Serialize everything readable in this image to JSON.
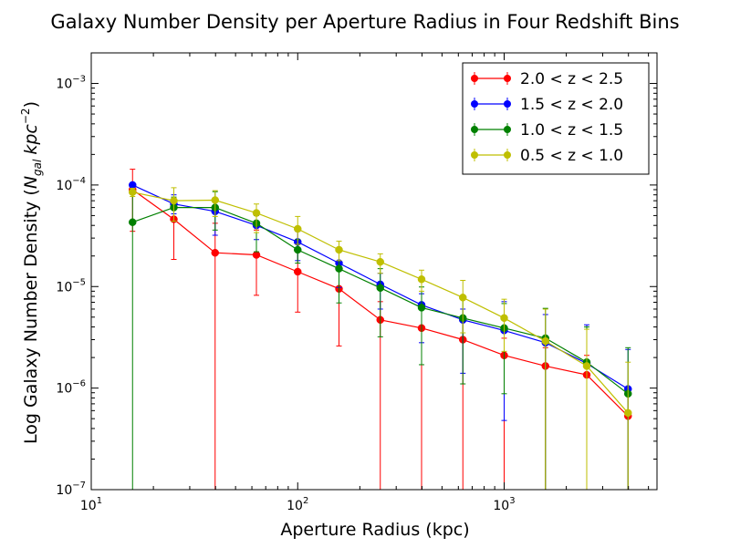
{
  "chart_data": {
    "type": "line",
    "title": "Galaxy Number Density per Aperture Radius in Four Redshift Bins",
    "xlabel": "Aperture Radius (kpc)",
    "ylabel_text": "Log Galaxy Number Density (",
    "ylabel_math": "N",
    "ylabel_sub": "gal",
    "ylabel_unit": "kpc",
    "ylabel_sup": "−2",
    "ylabel_close": ")",
    "xscale": "log",
    "yscale": "log",
    "xlim": [
      10,
      5500
    ],
    "ylim": [
      1e-07,
      0.002
    ],
    "x_ticks": [
      {
        "value": 10,
        "base": "10",
        "exp": "1"
      },
      {
        "value": 100,
        "base": "10",
        "exp": "2"
      },
      {
        "value": 1000,
        "base": "10",
        "exp": "3"
      }
    ],
    "y_ticks": [
      {
        "value": 1e-07,
        "base": "10",
        "exp": "−7"
      },
      {
        "value": 1e-06,
        "base": "10",
        "exp": "−6"
      },
      {
        "value": 1e-05,
        "base": "10",
        "exp": "−5"
      },
      {
        "value": 0.0001,
        "base": "10",
        "exp": "−4"
      },
      {
        "value": 0.001,
        "base": "10",
        "exp": "−3"
      }
    ],
    "grid": false,
    "legend": "top-right",
    "x": [
      15.85,
      25.12,
      39.81,
      63.1,
      100,
      158.5,
      251.2,
      398.1,
      631,
      1000,
      1585,
      2512,
      3981
    ],
    "series": [
      {
        "name": "2.0 < z < 2.5",
        "color": "#ff0000",
        "values": [
          9e-05,
          4.6e-05,
          2.15e-05,
          2.05e-05,
          1.4e-05,
          9.5e-06,
          4.7e-06,
          3.9e-06,
          3e-06,
          2.1e-06,
          1.65e-06,
          1.35e-06,
          5.3e-07
        ],
        "err_up": [
          0.000143,
          7.2e-05,
          4.2e-05,
          3.6e-05,
          2.4e-05,
          1.55e-05,
          7.1e-06,
          6e-06,
          4.5e-06,
          3.1e-06,
          2.5e-06,
          2.1e-06,
          1e-06
        ],
        "err_low": [
          3.5e-05,
          1.85e-05,
          1e-07,
          8.2e-06,
          5.6e-06,
          2.6e-06,
          1e-07,
          1e-07,
          1e-07,
          1e-07,
          1e-07,
          1e-07,
          1e-07
        ]
      },
      {
        "name": "1.5 < z < 2.0",
        "color": "#0000ff",
        "values": [
          0.0001,
          6.5e-05,
          5.5e-05,
          4e-05,
          2.75e-05,
          1.7e-05,
          1.05e-05,
          6.6e-06,
          4.7e-06,
          3.7e-06,
          2.8e-06,
          1.75e-06,
          9.8e-07
        ],
        "err_up": [
          0.000105,
          8e-05,
          7.3e-05,
          5e-05,
          3.5e-05,
          2.2e-05,
          1.35e-05,
          8.5e-06,
          6e-06,
          7.1e-06,
          5.3e-06,
          4.2e-06,
          2.4e-06
        ],
        "err_low": [
          9.5e-05,
          5.2e-05,
          3.2e-05,
          2.9e-05,
          1.8e-05,
          9.8e-06,
          6e-06,
          2.8e-06,
          1.4e-06,
          4.8e-07,
          1e-07,
          1e-07,
          1e-07
        ]
      },
      {
        "name": "1.0 < z < 1.5",
        "color": "#008000",
        "values": [
          4.3e-05,
          6e-05,
          6e-05,
          4.2e-05,
          2.3e-05,
          1.5e-05,
          9.7e-06,
          6.2e-06,
          4.9e-06,
          3.9e-06,
          3.1e-06,
          1.8e-06,
          8.8e-07
        ],
        "err_up": [
          9e-05,
          7.6e-05,
          8.6e-05,
          5.3e-05,
          2.9e-05,
          2.4e-05,
          1.5e-05,
          9.9e-06,
          7.5e-06,
          6.8e-06,
          6.1e-06,
          4e-06,
          2.5e-06
        ],
        "err_low": [
          1e-07,
          4.4e-05,
          3.6e-05,
          2.2e-05,
          1.7e-05,
          6.9e-06,
          3.2e-06,
          1.7e-06,
          1.1e-06,
          8.8e-07,
          1e-07,
          1e-07,
          1e-07
        ]
      },
      {
        "name": "0.5 < z < 1.0",
        "color": "#bfbf00",
        "values": [
          8.5e-05,
          7e-05,
          7.1e-05,
          5.3e-05,
          3.7e-05,
          2.3e-05,
          1.75e-05,
          1.18e-05,
          7.8e-06,
          4.9e-06,
          2.9e-06,
          1.65e-06,
          5.7e-07
        ],
        "err_up": [
          9.3e-05,
          9.4e-05,
          8.8e-05,
          6.5e-05,
          4.9e-05,
          2.8e-05,
          2.1e-05,
          1.45e-05,
          1.15e-05,
          7.5e-06,
          6e-06,
          3.8e-06,
          1.8e-06
        ],
        "err_low": [
          7.7e-05,
          4.4e-05,
          4.9e-05,
          3.4e-05,
          2.6e-05,
          1.8e-05,
          1.35e-05,
          9e-06,
          3.5e-06,
          2.3e-06,
          1e-07,
          1e-07,
          1e-07
        ]
      }
    ]
  }
}
